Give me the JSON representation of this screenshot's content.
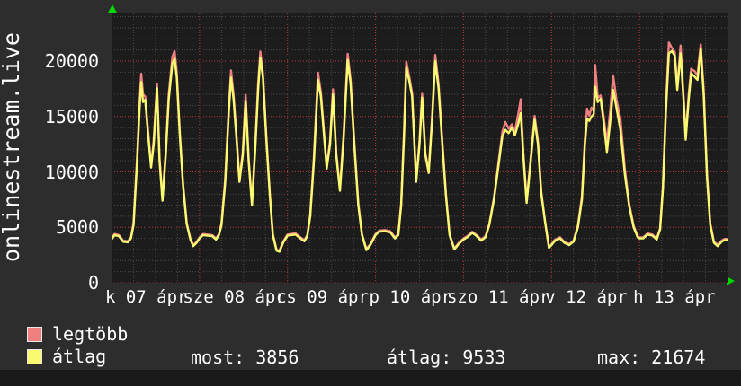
{
  "title": "onlinestream.live",
  "colors": {
    "background": "#2d2d2d",
    "plot_background": "#1c1c1c",
    "grid_minor": "#4a4a4a",
    "grid_major": "#b13c3c",
    "series_max": "#f08080",
    "series_avg": "#fafa70",
    "text": "#ffffff",
    "axis_arrow": "#00d400",
    "bottom_bar": "#191919"
  },
  "y_axis": {
    "ticks": [
      0,
      5000,
      10000,
      15000,
      20000
    ]
  },
  "x_axis": {
    "labels": [
      {
        "text": "k 07 ápr",
        "hour": 9.5
      },
      {
        "text": "sze 08 ápr",
        "hour": 33.5
      },
      {
        "text": "cs 09 ápr",
        "hour": 57.5
      },
      {
        "text": "p 10 ápr",
        "hour": 81.5
      },
      {
        "text": "szo 11 ápr",
        "hour": 105.5
      },
      {
        "text": "v 12 ápr",
        "hour": 129.5
      },
      {
        "text": "h 13 ápr",
        "hour": 153.5
      }
    ]
  },
  "legend": [
    {
      "label": "legtöbb",
      "color": "#f08080"
    },
    {
      "label": "átlag",
      "color": "#fafa70"
    }
  ],
  "stats": [
    {
      "label": "most:",
      "value": "3856"
    },
    {
      "label": "átlag:",
      "value": "9533"
    },
    {
      "label": "max:",
      "value": "21674"
    }
  ],
  "chart_data": {
    "type": "line",
    "title": "onlinestream.live",
    "xlim": [
      0,
      168
    ],
    "ylim": [
      0,
      24300
    ],
    "x_unit_hours_per_day": 24,
    "grid": {
      "x_minor_step": 6,
      "x_major_step": 24,
      "y_minor_step": 1000,
      "y_major_step": 5000
    },
    "legend_position": "bottom-left",
    "series": [
      {
        "name": "legtöbb",
        "color": "#f08080",
        "index": 1
      },
      {
        "name": "átlag",
        "color": "#fafa70",
        "index": 2
      }
    ],
    "points_hour_max_avg": [
      [
        0,
        4000,
        3900
      ],
      [
        0.8,
        4400,
        4300
      ],
      [
        2,
        4300,
        4200
      ],
      [
        3.2,
        3800,
        3700
      ],
      [
        4.5,
        3750,
        3650
      ],
      [
        5.3,
        4100,
        4000
      ],
      [
        6,
        5400,
        5200
      ],
      [
        7,
        11400,
        11000
      ],
      [
        7.7,
        16600,
        16000
      ],
      [
        8.1,
        18850,
        18100
      ],
      [
        8.6,
        17000,
        16300
      ],
      [
        9.2,
        16800,
        16500
      ],
      [
        9.8,
        14300,
        14000
      ],
      [
        10.8,
        10600,
        10400
      ],
      [
        11.5,
        12800,
        12500
      ],
      [
        12.4,
        17900,
        17550
      ],
      [
        13.1,
        11200,
        11000
      ],
      [
        13.9,
        7600,
        7400
      ],
      [
        14.8,
        11800,
        11500
      ],
      [
        15.6,
        17000,
        16500
      ],
      [
        16.6,
        20400,
        19800
      ],
      [
        17.2,
        20900,
        20200
      ],
      [
        17.8,
        18900,
        18500
      ],
      [
        18.6,
        13800,
        13500
      ],
      [
        19.5,
        9000,
        8800
      ],
      [
        20.5,
        5400,
        5300
      ],
      [
        21.5,
        4000,
        3900
      ],
      [
        22.3,
        3400,
        3300
      ],
      [
        23.2,
        3700,
        3600
      ],
      [
        24,
        4100,
        4000
      ],
      [
        25,
        4400,
        4300
      ],
      [
        26.2,
        4350,
        4250
      ],
      [
        27.5,
        4300,
        4200
      ],
      [
        28.5,
        4000,
        3900
      ],
      [
        29.3,
        4400,
        4300
      ],
      [
        30,
        5400,
        5200
      ],
      [
        31,
        9300,
        9000
      ],
      [
        32,
        16000,
        15500
      ],
      [
        32.6,
        19150,
        18500
      ],
      [
        33.3,
        16900,
        16500
      ],
      [
        34.2,
        12800,
        12500
      ],
      [
        34.9,
        9300,
        9100
      ],
      [
        35.8,
        11800,
        11500
      ],
      [
        36.6,
        16950,
        16400
      ],
      [
        37.4,
        11200,
        11000
      ],
      [
        38.3,
        7200,
        7000
      ],
      [
        39.2,
        12400,
        12000
      ],
      [
        40,
        18000,
        17500
      ],
      [
        40.6,
        20850,
        20300
      ],
      [
        41.3,
        18900,
        18500
      ],
      [
        42.2,
        13300,
        13000
      ],
      [
        43.2,
        8000,
        7800
      ],
      [
        44,
        4400,
        4300
      ],
      [
        45,
        3000,
        2900
      ],
      [
        45.8,
        2900,
        2800
      ],
      [
        46.8,
        3700,
        3600
      ],
      [
        48,
        4350,
        4250
      ],
      [
        49,
        4400,
        4300
      ],
      [
        50.2,
        4450,
        4350
      ],
      [
        51.5,
        4100,
        4000
      ],
      [
        52.6,
        3850,
        3750
      ],
      [
        53.4,
        4300,
        4200
      ],
      [
        54.2,
        6200,
        6000
      ],
      [
        55.2,
        11400,
        11000
      ],
      [
        56.3,
        18950,
        18300
      ],
      [
        57.1,
        17200,
        16800
      ],
      [
        57.9,
        13800,
        13500
      ],
      [
        58.7,
        10500,
        10300
      ],
      [
        59.6,
        12800,
        12500
      ],
      [
        60.4,
        17450,
        17000
      ],
      [
        61.3,
        11700,
        11500
      ],
      [
        62.3,
        8500,
        8300
      ],
      [
        63.3,
        13400,
        13000
      ],
      [
        64.4,
        20650,
        20100
      ],
      [
        65.2,
        18400,
        18000
      ],
      [
        66.3,
        12300,
        12000
      ],
      [
        67.3,
        7200,
        7000
      ],
      [
        68.3,
        4400,
        4300
      ],
      [
        69.5,
        3050,
        2950
      ],
      [
        70.6,
        3500,
        3400
      ],
      [
        72,
        4400,
        4300
      ],
      [
        73,
        4700,
        4600
      ],
      [
        74.5,
        4750,
        4650
      ],
      [
        76,
        4650,
        4550
      ],
      [
        77.3,
        4100,
        4000
      ],
      [
        78.2,
        4400,
        4300
      ],
      [
        79,
        7200,
        7000
      ],
      [
        79.8,
        13900,
        13500
      ],
      [
        80.4,
        19950,
        19400
      ],
      [
        81.2,
        18600,
        18200
      ],
      [
        82,
        17100,
        16800
      ],
      [
        83.1,
        9300,
        9100
      ],
      [
        84,
        12800,
        12500
      ],
      [
        84.7,
        17050,
        16700
      ],
      [
        85.6,
        11700,
        11500
      ],
      [
        86.5,
        10100,
        9900
      ],
      [
        87.4,
        14900,
        14500
      ],
      [
        88.3,
        20550,
        20000
      ],
      [
        89.2,
        17900,
        17500
      ],
      [
        90.2,
        12800,
        12500
      ],
      [
        91.2,
        8000,
        7800
      ],
      [
        92.2,
        4400,
        4300
      ],
      [
        93.5,
        3100,
        3000
      ],
      [
        94.7,
        3600,
        3500
      ],
      [
        96,
        4000,
        3900
      ],
      [
        97,
        4200,
        4100
      ],
      [
        98.4,
        4600,
        4500
      ],
      [
        99.6,
        4300,
        4200
      ],
      [
        100.8,
        3900,
        3800
      ],
      [
        102,
        4200,
        4100
      ],
      [
        103,
        5300,
        5200
      ],
      [
        104.3,
        7700,
        7500
      ],
      [
        105.5,
        10800,
        10500
      ],
      [
        106.6,
        13600,
        13200
      ],
      [
        107.4,
        14500,
        13800
      ],
      [
        108.3,
        13900,
        13500
      ],
      [
        109.2,
        14300,
        14000
      ],
      [
        110,
        13600,
        13300
      ],
      [
        110.9,
        15200,
        14300
      ],
      [
        111.6,
        16550,
        15300
      ],
      [
        112.3,
        11800,
        11500
      ],
      [
        113.2,
        7400,
        7200
      ],
      [
        114.2,
        10800,
        10500
      ],
      [
        115.4,
        15050,
        14700
      ],
      [
        116.3,
        12800,
        12500
      ],
      [
        117.2,
        8200,
        8000
      ],
      [
        118.2,
        5700,
        5600
      ],
      [
        119.3,
        3250,
        3150
      ],
      [
        120,
        3500,
        3400
      ],
      [
        121,
        3900,
        3800
      ],
      [
        122.3,
        4100,
        4000
      ],
      [
        123.5,
        3700,
        3600
      ],
      [
        124.8,
        3500,
        3400
      ],
      [
        126,
        3800,
        3700
      ],
      [
        127.2,
        5200,
        5000
      ],
      [
        128.3,
        7800,
        7500
      ],
      [
        129.1,
        12900,
        12500
      ],
      [
        129.7,
        15700,
        14800
      ],
      [
        130.3,
        15100,
        14600
      ],
      [
        130.9,
        15800,
        15000
      ],
      [
        131.5,
        15500,
        15200
      ],
      [
        131.9,
        19650,
        17700
      ],
      [
        132.6,
        16700,
        16300
      ],
      [
        133.4,
        16900,
        16600
      ],
      [
        134.2,
        15000,
        14500
      ],
      [
        135.1,
        12600,
        11800
      ],
      [
        136,
        15500,
        14500
      ],
      [
        136.8,
        18700,
        17400
      ],
      [
        137.7,
        16500,
        15800
      ],
      [
        138.8,
        14800,
        13800
      ],
      [
        140,
        10300,
        9800
      ],
      [
        141.2,
        7100,
        6900
      ],
      [
        142.4,
        5150,
        5000
      ],
      [
        143.5,
        4200,
        4100
      ],
      [
        144,
        4100,
        4000
      ],
      [
        145,
        4100,
        4000
      ],
      [
        146.2,
        4450,
        4350
      ],
      [
        147.5,
        4350,
        4250
      ],
      [
        148.7,
        4000,
        3900
      ],
      [
        149.6,
        4900,
        4800
      ],
      [
        150.4,
        8800,
        8500
      ],
      [
        151.2,
        16000,
        15500
      ],
      [
        152,
        21674,
        20700
      ],
      [
        152.8,
        21200,
        20900
      ],
      [
        153.6,
        20800,
        20500
      ],
      [
        154.3,
        17700,
        17400
      ],
      [
        155.2,
        21400,
        20700
      ],
      [
        156,
        16900,
        16500
      ],
      [
        156.6,
        13200,
        12900
      ],
      [
        157.4,
        17000,
        16500
      ],
      [
        158.1,
        19300,
        18900
      ],
      [
        159,
        19100,
        18600
      ],
      [
        159.8,
        18700,
        18300
      ],
      [
        160.7,
        21500,
        21100
      ],
      [
        161.5,
        17400,
        17000
      ],
      [
        162.4,
        9800,
        9500
      ],
      [
        163.3,
        5400,
        5200
      ],
      [
        164.3,
        3700,
        3600
      ],
      [
        165.3,
        3450,
        3300
      ],
      [
        166.4,
        3800,
        3700
      ],
      [
        167.2,
        3950,
        3850
      ],
      [
        168,
        3950,
        3856
      ]
    ]
  }
}
